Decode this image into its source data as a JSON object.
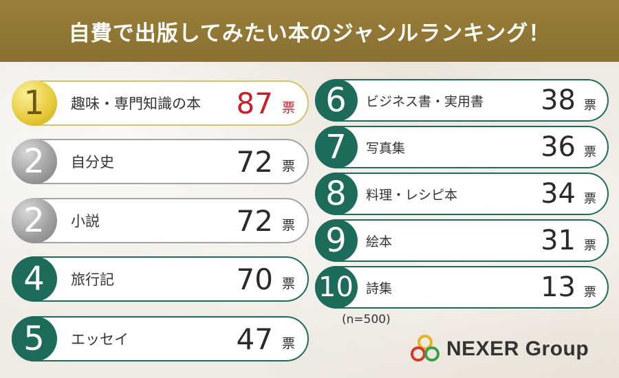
{
  "title": "自費で出版してみたい本のジャンルランキング！",
  "unit": "票",
  "sample_note": "(n=500)",
  "logo_text": "NEXER Group",
  "colors": {
    "header": "#8f7533",
    "teal": "#1c6b5b",
    "gold": "#e6c93a",
    "silver": "#9c9c9c",
    "top_value": "#c8202a"
  },
  "chart_data": {
    "type": "table",
    "title": "自費で出版してみたい本のジャンルランキング！",
    "columns": [
      "rank",
      "genre",
      "votes"
    ],
    "rows": [
      {
        "rank": "1",
        "label": "趣味・専門知識の本",
        "value": "87"
      },
      {
        "rank": "2",
        "label": "自分史",
        "value": "72"
      },
      {
        "rank": "2",
        "label": "小説",
        "value": "72"
      },
      {
        "rank": "4",
        "label": "旅行記",
        "value": "70"
      },
      {
        "rank": "5",
        "label": "エッセイ",
        "value": "47"
      },
      {
        "rank": "6",
        "label": "ビジネス書・実用書",
        "value": "38"
      },
      {
        "rank": "7",
        "label": "写真集",
        "value": "36"
      },
      {
        "rank": "8",
        "label": "料理・レシピ本",
        "value": "34"
      },
      {
        "rank": "9",
        "label": "絵本",
        "value": "31"
      },
      {
        "rank": "10",
        "label": "詩集",
        "value": "13"
      }
    ]
  }
}
